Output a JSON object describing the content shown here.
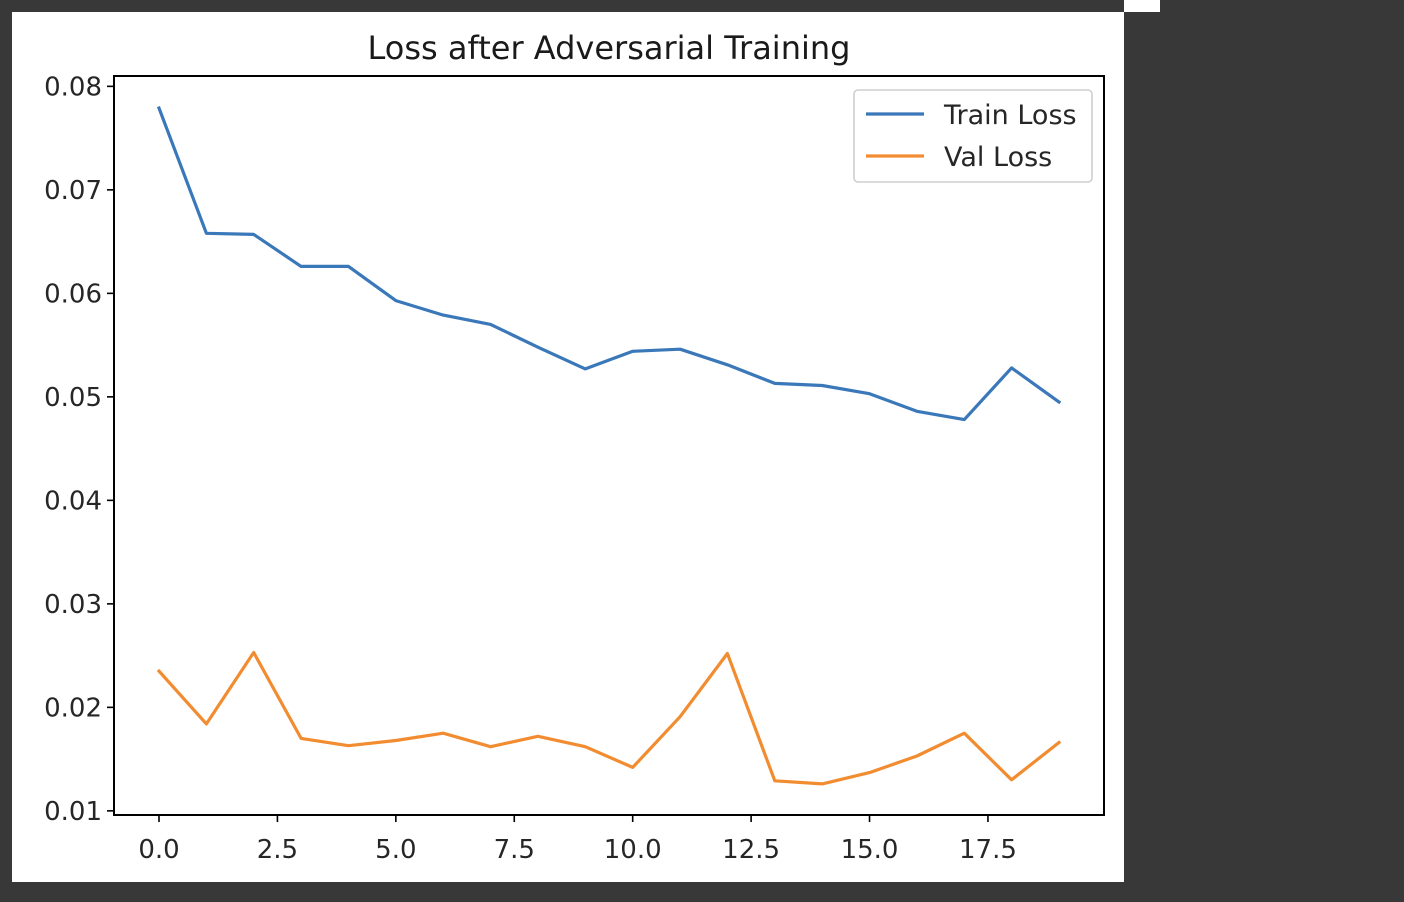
{
  "colors": {
    "background": "#383838",
    "figure": "#ffffff",
    "train": "#3a78b9",
    "val": "#f28c30"
  },
  "chart_data": {
    "type": "line",
    "title": "Loss after Adversarial Training",
    "xlabel": "",
    "ylabel": "",
    "xlim": [
      -0.95,
      19.95
    ],
    "ylim": [
      0.0096,
      0.081
    ],
    "xticks": [
      0.0,
      2.5,
      5.0,
      7.5,
      10.0,
      12.5,
      15.0,
      17.5
    ],
    "xtick_labels": [
      "0.0",
      "2.5",
      "5.0",
      "7.5",
      "10.0",
      "12.5",
      "15.0",
      "17.5"
    ],
    "yticks": [
      0.01,
      0.02,
      0.03,
      0.04,
      0.05,
      0.06,
      0.07,
      0.08
    ],
    "ytick_labels": [
      "0.01",
      "0.02",
      "0.03",
      "0.04",
      "0.05",
      "0.06",
      "0.07",
      "0.08"
    ],
    "grid": false,
    "legend_position": "top-right",
    "x": [
      0,
      1,
      2,
      3,
      4,
      5,
      6,
      7,
      8,
      9,
      10,
      11,
      12,
      13,
      14,
      15,
      16,
      17,
      18,
      19
    ],
    "series": [
      {
        "name": "Train Loss",
        "color": "#3a78b9",
        "values": [
          0.0779,
          0.0658,
          0.0657,
          0.0626,
          0.0626,
          0.0593,
          0.0579,
          0.057,
          0.0548,
          0.0527,
          0.0544,
          0.0546,
          0.0531,
          0.0513,
          0.0511,
          0.0503,
          0.0486,
          0.0478,
          0.0528,
          0.0495
        ]
      },
      {
        "name": "Val Loss",
        "color": "#f28c30",
        "values": [
          0.0235,
          0.0184,
          0.0253,
          0.017,
          0.0163,
          0.0168,
          0.0175,
          0.0162,
          0.0172,
          0.0162,
          0.0142,
          0.0191,
          0.0252,
          0.0129,
          0.0126,
          0.0137,
          0.0153,
          0.0175,
          0.013,
          0.0166
        ]
      }
    ]
  }
}
